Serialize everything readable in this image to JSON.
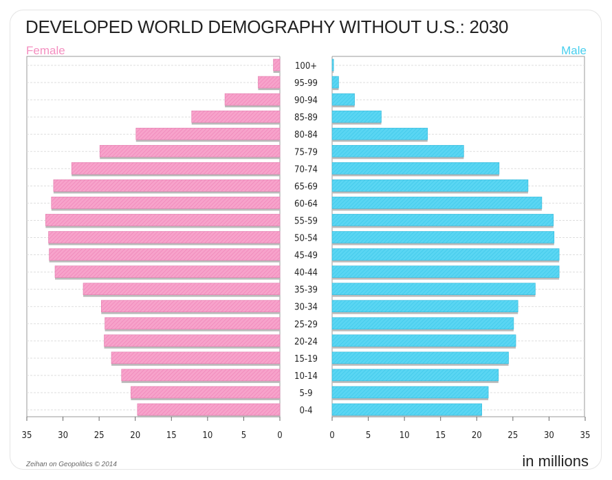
{
  "chart_data": {
    "type": "bar",
    "orientation": "horizontal",
    "layout": "population-pyramid",
    "title": "DEVELOPED WORLD DEMOGRAPHY WITHOUT U.S.: 2030",
    "xlabel": "in millions",
    "xlim": [
      0,
      35
    ],
    "xticks": [
      0,
      5,
      10,
      15,
      20,
      25,
      30,
      35
    ],
    "grid": true,
    "categories": [
      "100+",
      "95-99",
      "90-94",
      "85-89",
      "80-84",
      "75-79",
      "70-74",
      "65-69",
      "60-64",
      "55-59",
      "50-54",
      "45-49",
      "40-44",
      "35-39",
      "30-34",
      "25-29",
      "20-24",
      "15-19",
      "10-14",
      "5-9",
      "0-4"
    ],
    "series": [
      {
        "name": "Female",
        "color": "#f48fc0",
        "values": [
          0.9,
          3.0,
          7.6,
          12.2,
          19.9,
          24.9,
          28.8,
          31.3,
          31.6,
          32.4,
          32.0,
          31.9,
          31.1,
          27.2,
          24.7,
          24.2,
          24.3,
          23.3,
          21.9,
          20.6,
          19.7
        ]
      },
      {
        "name": "Male",
        "color": "#48cfee",
        "values": [
          0.2,
          0.9,
          3.1,
          6.8,
          13.2,
          18.2,
          23.1,
          27.1,
          29.0,
          30.6,
          30.7,
          31.4,
          31.4,
          28.1,
          25.7,
          25.1,
          25.4,
          24.4,
          23.0,
          21.6,
          20.7
        ]
      }
    ]
  },
  "credit": "Zeihan on Geopolitics © 2014"
}
